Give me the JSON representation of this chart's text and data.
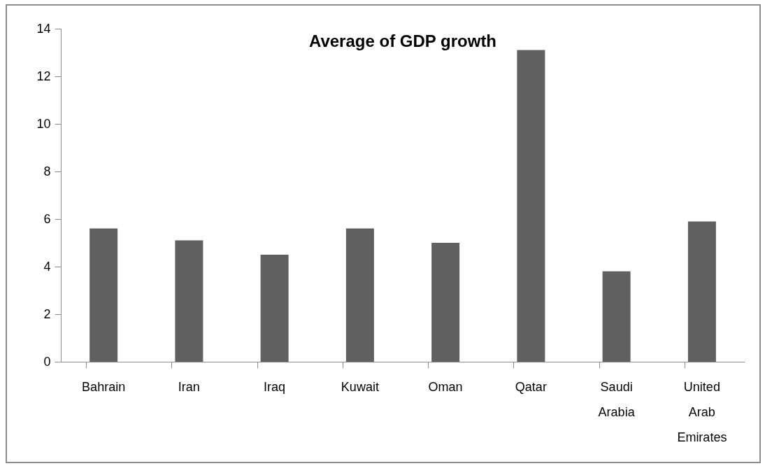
{
  "chart_data": {
    "type": "bar",
    "title": "Average of GDP growth",
    "categories": [
      "Bahrain",
      "Iran",
      "Iraq",
      "Kuwait",
      "Oman",
      "Qatar",
      "Saudi Arabia",
      "United Arab Emirates"
    ],
    "values": [
      5.6,
      5.1,
      4.5,
      5.6,
      5.0,
      13.1,
      3.8,
      5.9
    ],
    "color": "#606060",
    "ylim": [
      0,
      14
    ],
    "yticks": [
      0,
      2,
      4,
      6,
      8,
      10,
      12,
      14
    ],
    "grid": false
  }
}
